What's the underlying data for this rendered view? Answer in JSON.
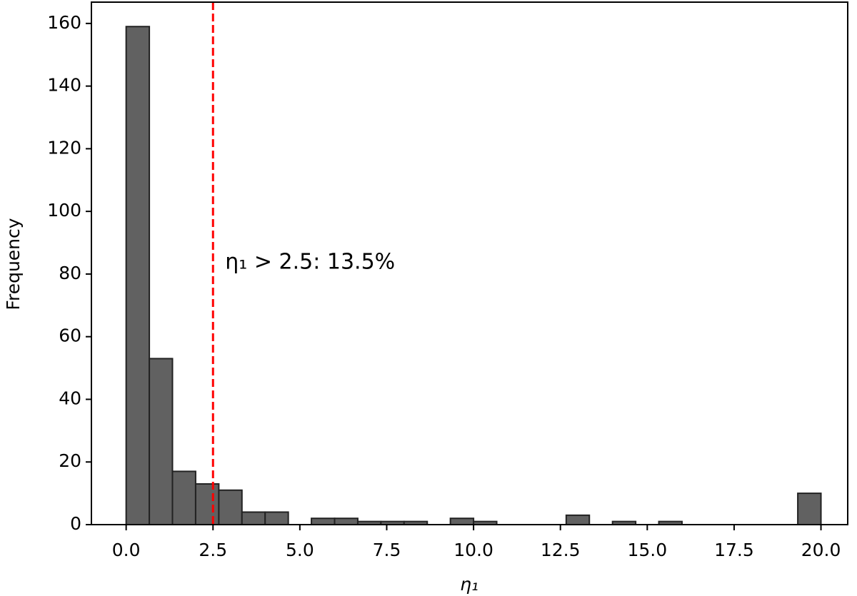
{
  "chart_data": {
    "type": "histogram",
    "x_label": "η₁",
    "y_label": "Frequency",
    "annotation": "η₁ > 2.5: 13.5%",
    "threshold": 2.5,
    "threshold_color": "#ff0000",
    "bins": [
      0,
      0.667,
      1.333,
      2,
      2.667,
      3.333,
      4,
      4.667,
      5.333,
      6,
      6.667,
      7.333,
      8,
      8.667,
      9.333,
      10,
      10.667,
      11.333,
      12,
      12.667,
      13.333,
      14,
      14.667,
      15.333,
      16,
      16.667,
      17.333,
      18,
      18.667,
      19.333,
      20
    ],
    "values": [
      159,
      53,
      17,
      13,
      11,
      4,
      4,
      0,
      2,
      2,
      1,
      1,
      1,
      0,
      2,
      1,
      0,
      0,
      0,
      3,
      0,
      1,
      0,
      1,
      0,
      0,
      0,
      0,
      0,
      10
    ],
    "color": "#616161",
    "edge_color": "#222222",
    "xlim": [
      -1,
      20.77
    ],
    "ylim": [
      0,
      166.8
    ],
    "xticks": [
      {
        "value": 0,
        "label": "0.0"
      },
      {
        "value": 2.5,
        "label": "2.5"
      },
      {
        "value": 5,
        "label": "5.0"
      },
      {
        "value": 7.5,
        "label": "7.5"
      },
      {
        "value": 10,
        "label": "10.0"
      },
      {
        "value": 12.5,
        "label": "12.5"
      },
      {
        "value": 15,
        "label": "15.0"
      },
      {
        "value": 17.5,
        "label": "17.5"
      },
      {
        "value": 20,
        "label": "20.0"
      }
    ],
    "yticks": [
      0,
      20,
      40,
      60,
      80,
      100,
      120,
      140,
      160
    ],
    "grid": false
  }
}
